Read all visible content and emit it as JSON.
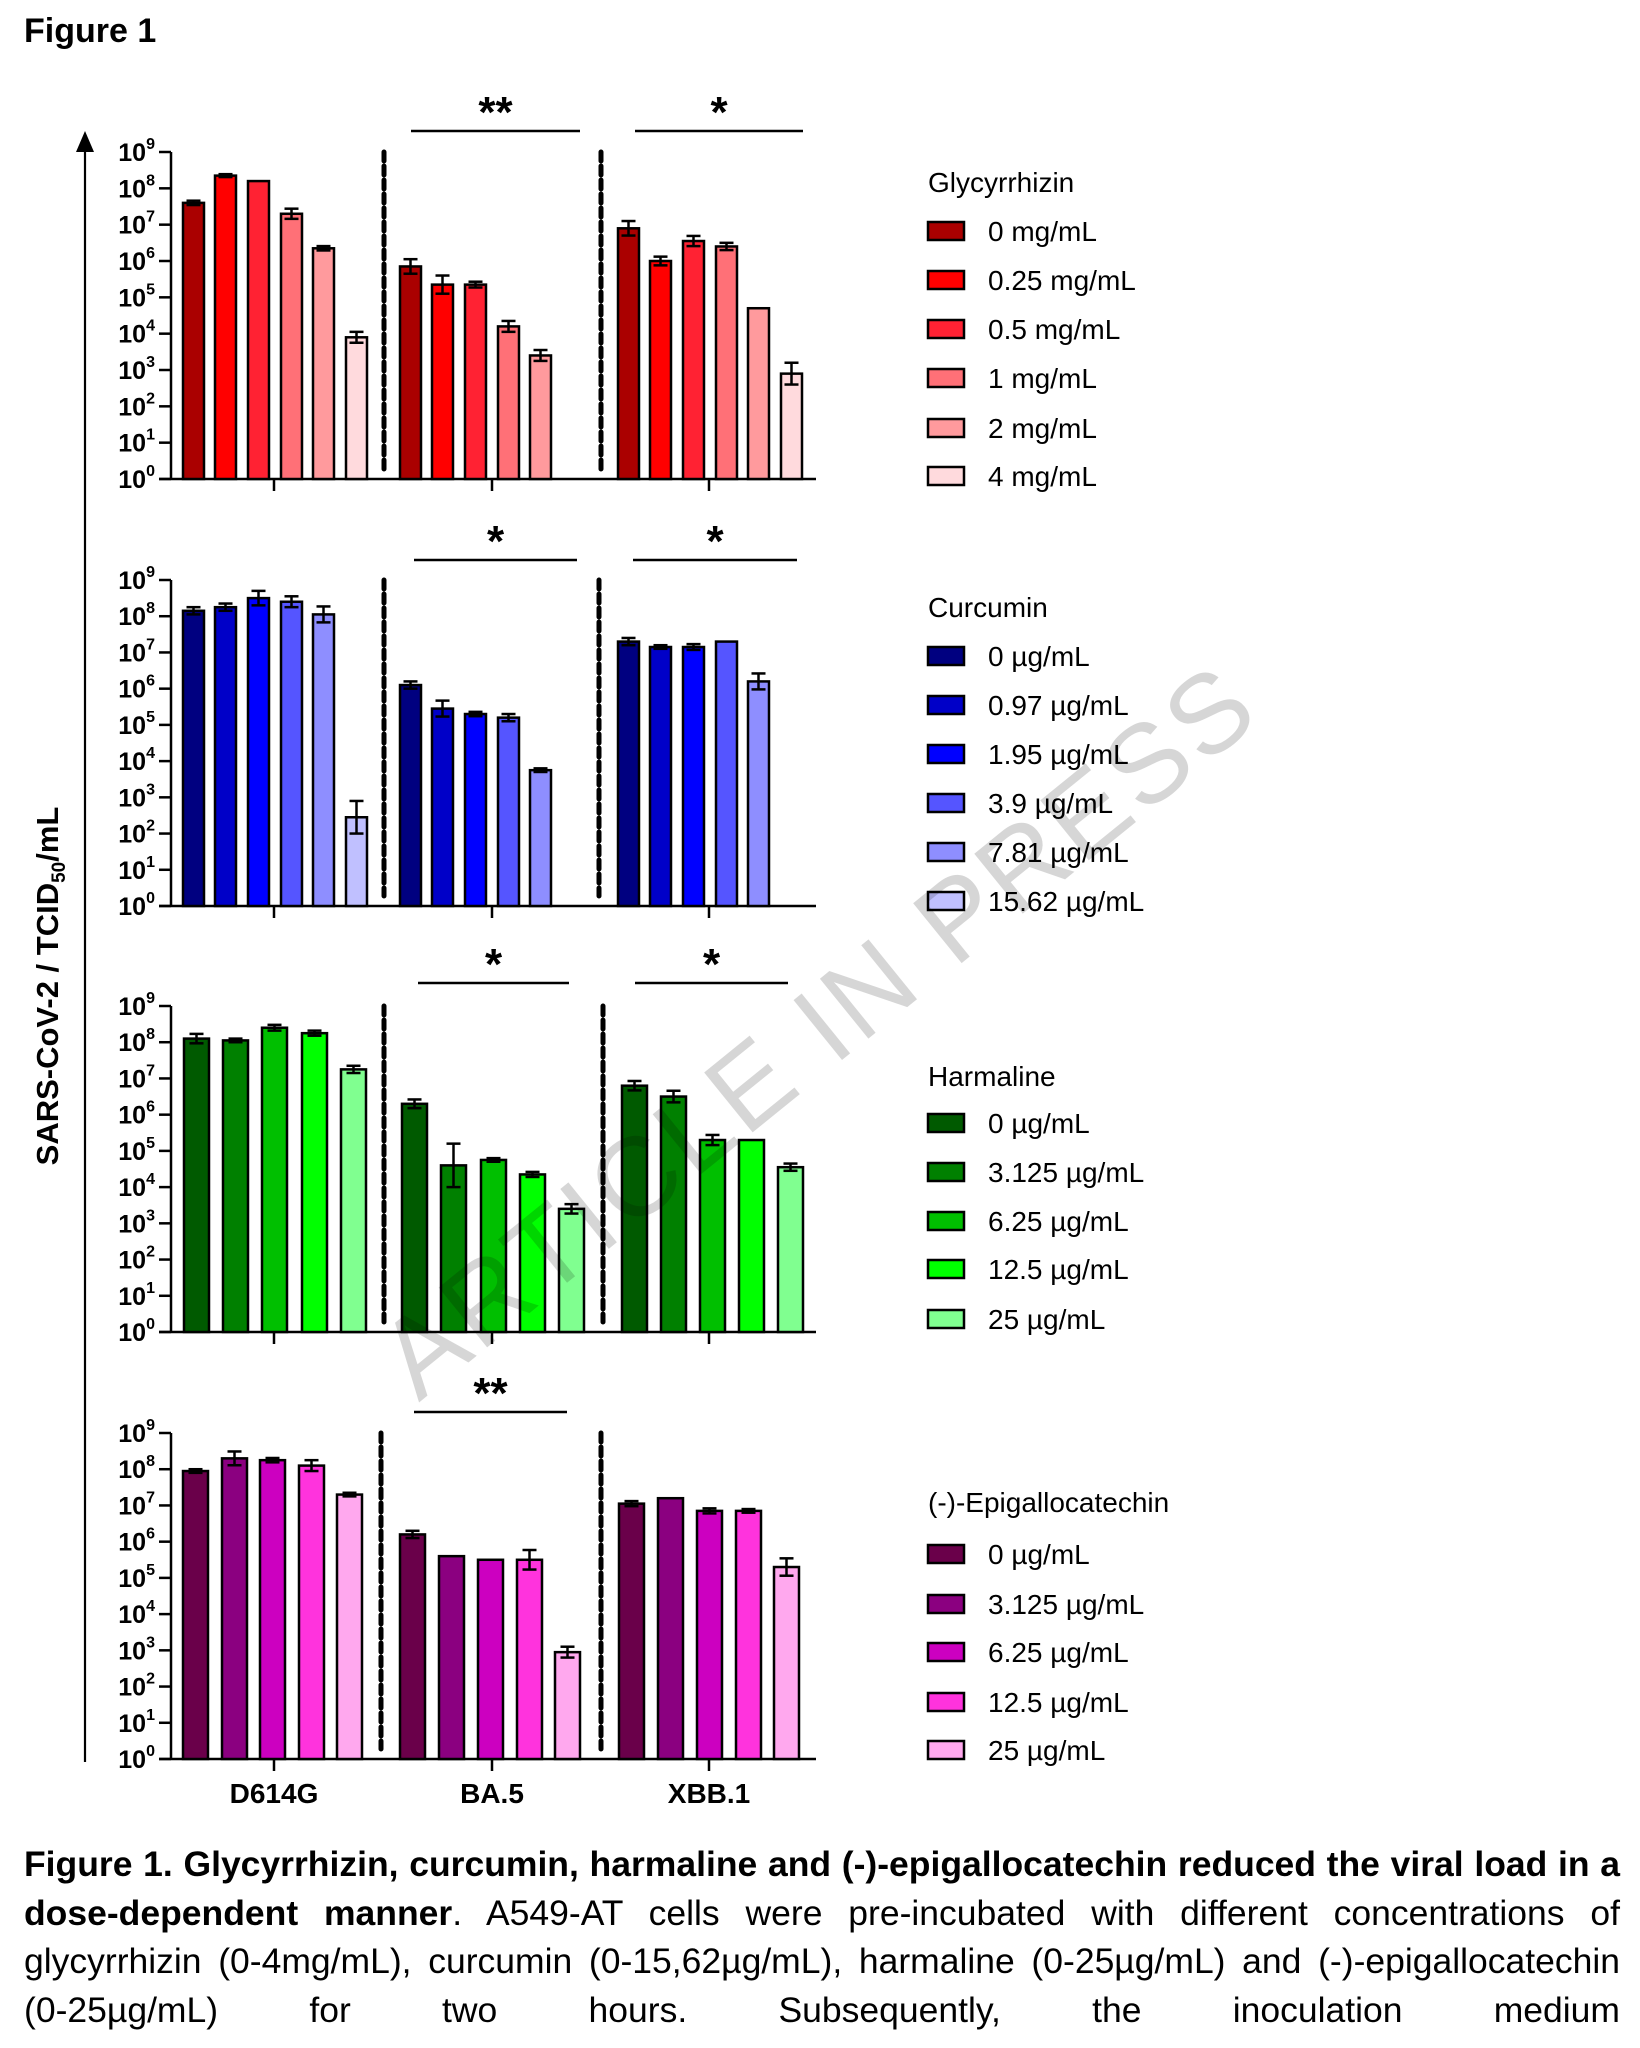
{
  "figure_label": "Figure 1",
  "watermark": "ARTICLE IN PRESS",
  "caption": {
    "bold_part": "Figure 1. Glycyrrhizin, curcumin, harmaline and (-)-epigallocatechin reduced the viral load in a dose-dependent manner",
    "normal_part": ". A549-AT cells were pre-incubated with different concentrations of glycyrrhizin (0-4mg/mL), curcumin (0-15,62µg/mL), harmaline (0-25µg/mL) and (-)-epigallocatechin (0-25µg/mL) for two hours. Subsequently, the inoculation medium"
  },
  "chart_data": [
    {
      "type": "bar",
      "title": "Glycyrrhizin",
      "ylabel": "SARS-CoV-2 / TCID50/mL",
      "yscale": "log",
      "ylim": [
        1,
        1000000000
      ],
      "yticks": [
        "10^0",
        "10^1",
        "10^2",
        "10^3",
        "10^4",
        "10^5",
        "10^6",
        "10^7",
        "10^8",
        "10^9"
      ],
      "categories": [
        "D614G",
        "BA.5",
        "XBB.1"
      ],
      "legend_position": "right",
      "series": [
        {
          "name": "0 mg/mL",
          "color": "#AA0000",
          "values_log10": [
            7.6,
            5.85,
            6.9
          ],
          "err_log10": [
            0.06,
            0.2,
            0.2
          ]
        },
        {
          "name": "0.25 mg/mL",
          "color": "#FF0000",
          "values_log10": [
            8.35,
            5.35,
            6.0
          ],
          "err_log10": [
            0.04,
            0.25,
            0.12
          ]
        },
        {
          "name": "0.5 mg/mL",
          "color": "#FF2233",
          "values_log10": [
            8.2,
            5.35,
            6.55
          ],
          "err_log10": [
            0,
            0.08,
            0.14
          ]
        },
        {
          "name": "1 mg/mL",
          "color": "#FF7077",
          "values_log10": [
            7.3,
            4.2,
            6.4
          ],
          "err_log10": [
            0.14,
            0.15,
            0.1
          ]
        },
        {
          "name": "2 mg/mL",
          "color": "#FF9A9D",
          "values_log10": [
            6.35,
            3.4,
            4.7
          ],
          "err_log10": [
            0.06,
            0.15,
            0
          ]
        },
        {
          "name": "4 mg/mL",
          "color": "#FFDADD",
          "values_log10": [
            3.9,
            null,
            2.9
          ],
          "err_log10": [
            0.15,
            null,
            0.3
          ]
        }
      ],
      "significance": [
        {
          "group": "BA.5",
          "label": "**"
        },
        {
          "group": "XBB.1",
          "label": "*"
        }
      ]
    },
    {
      "type": "bar",
      "title": "Curcumin",
      "ylabel": "SARS-CoV-2 / TCID50/mL",
      "yscale": "log",
      "ylim": [
        1,
        1000000000
      ],
      "yticks": [
        "10^0",
        "10^1",
        "10^2",
        "10^3",
        "10^4",
        "10^5",
        "10^6",
        "10^7",
        "10^8",
        "10^9"
      ],
      "categories": [
        "D614G",
        "BA.5",
        "XBB.1"
      ],
      "legend_position": "right",
      "series": [
        {
          "name": "0 µg/mL",
          "color": "#000080",
          "values_log10": [
            8.15,
            6.1,
            7.3
          ],
          "err_log10": [
            0.1,
            0.1,
            0.1
          ]
        },
        {
          "name": "0.97 µg/mL",
          "color": "#0000C8",
          "values_log10": [
            8.25,
            5.45,
            7.15
          ],
          "err_log10": [
            0.1,
            0.22,
            0.05
          ]
        },
        {
          "name": "1.95 µg/mL",
          "color": "#0000FF",
          "values_log10": [
            8.5,
            5.3,
            7.15
          ],
          "err_log10": [
            0.2,
            0.06,
            0.08
          ]
        },
        {
          "name": "3.9 µg/mL",
          "color": "#5555FF",
          "values_log10": [
            8.4,
            5.2,
            7.3
          ],
          "err_log10": [
            0.15,
            0.1,
            0
          ]
        },
        {
          "name": "7.81 µg/mL",
          "color": "#8E8EFF",
          "values_log10": [
            8.05,
            3.75,
            6.2
          ],
          "err_log10": [
            0.22,
            0.05,
            0.22
          ]
        },
        {
          "name": "15.62 µg/mL",
          "color": "#C0C0FF",
          "values_log10": [
            2.45,
            null,
            null
          ],
          "err_log10": [
            0.45,
            null,
            null
          ]
        }
      ],
      "significance": [
        {
          "group": "BA.5",
          "label": "*"
        },
        {
          "group": "XBB.1",
          "label": "*"
        }
      ]
    },
    {
      "type": "bar",
      "title": "Harmaline",
      "ylabel": "SARS-CoV-2 / TCID50/mL",
      "yscale": "log",
      "ylim": [
        1,
        1000000000
      ],
      "yticks": [
        "10^0",
        "10^1",
        "10^2",
        "10^3",
        "10^4",
        "10^5",
        "10^6",
        "10^7",
        "10^8",
        "10^9"
      ],
      "categories": [
        "D614G",
        "BA.5",
        "XBB.1"
      ],
      "legend_position": "right",
      "series": [
        {
          "name": "0 µg/mL",
          "color": "#005A00",
          "values_log10": [
            8.1,
            6.3,
            6.8
          ],
          "err_log10": [
            0.13,
            0.12,
            0.13
          ]
        },
        {
          "name": "3.125 µg/mL",
          "color": "#008000",
          "values_log10": [
            8.05,
            4.6,
            6.5
          ],
          "err_log10": [
            0.05,
            0.6,
            0.16
          ]
        },
        {
          "name": "6.25 µg/mL",
          "color": "#00BF00",
          "values_log10": [
            8.4,
            4.75,
            5.3
          ],
          "err_log10": [
            0.08,
            0.05,
            0.14
          ]
        },
        {
          "name": "12.5 µg/mL",
          "color": "#00FF00",
          "values_log10": [
            8.25,
            4.35,
            5.3
          ],
          "err_log10": [
            0.07,
            0.07,
            0
          ]
        },
        {
          "name": "25 µg/mL",
          "color": "#80FF90",
          "values_log10": [
            7.25,
            3.4,
            4.55
          ],
          "err_log10": [
            0.1,
            0.13,
            0.1
          ]
        }
      ],
      "significance": [
        {
          "group": "BA.5",
          "label": "*"
        },
        {
          "group": "XBB.1",
          "label": "*"
        }
      ]
    },
    {
      "type": "bar",
      "title": "(-)-Epigallocatechin",
      "ylabel": "SARS-CoV-2 / TCID50/mL",
      "yscale": "log",
      "ylim": [
        1,
        1000000000
      ],
      "yticks": [
        "10^0",
        "10^1",
        "10^2",
        "10^3",
        "10^4",
        "10^5",
        "10^6",
        "10^7",
        "10^8",
        "10^9"
      ],
      "categories": [
        "D614G",
        "BA.5",
        "XBB.1"
      ],
      "legend_position": "right",
      "series": [
        {
          "name": "0 µg/mL",
          "color": "#6A004A",
          "values_log10": [
            7.95,
            6.2,
            7.05
          ],
          "err_log10": [
            0.05,
            0.1,
            0.07
          ]
        },
        {
          "name": "3.125 µg/mL",
          "color": "#8B0080",
          "values_log10": [
            8.3,
            5.6,
            7.2
          ],
          "err_log10": [
            0.19,
            0,
            0
          ]
        },
        {
          "name": "6.25 µg/mL",
          "color": "#CC00C0",
          "values_log10": [
            8.25,
            5.5,
            6.85
          ],
          "err_log10": [
            0.06,
            0,
            0.07
          ]
        },
        {
          "name": "12.5 µg/mL",
          "color": "#FF33DD",
          "values_log10": [
            8.1,
            5.5,
            6.85
          ],
          "err_log10": [
            0.15,
            0.27,
            0.05
          ]
        },
        {
          "name": "25 µg/mL",
          "color": "#FFA8EE",
          "values_log10": [
            7.3,
            2.95,
            5.3
          ],
          "err_log10": [
            0.05,
            0.15,
            0.24
          ]
        }
      ],
      "significance": [
        {
          "group": "BA.5",
          "label": "**"
        }
      ]
    }
  ]
}
